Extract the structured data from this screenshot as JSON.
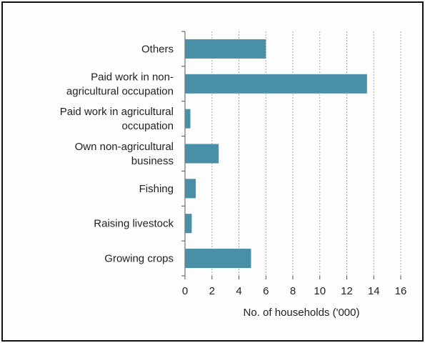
{
  "chart_data": {
    "type": "bar",
    "orientation": "horizontal",
    "categories": [
      [
        "Others"
      ],
      [
        "Paid work in non-",
        "agricultural occupation"
      ],
      [
        "Paid work in agricultural",
        "occupation"
      ],
      [
        "Own non-agricultural",
        "business"
      ],
      [
        "Fishing"
      ],
      [
        "Raising livestock"
      ],
      [
        "Growing crops"
      ]
    ],
    "values": [
      6.0,
      13.5,
      0.4,
      2.5,
      0.8,
      0.5,
      4.9
    ],
    "xlabel": "No. of households ('000)",
    "ylabel": "",
    "xlim": [
      0,
      16
    ],
    "xticks": [
      "0",
      "2",
      "4",
      "6",
      "8",
      "10",
      "12",
      "14",
      "16"
    ],
    "grid": "vertical dashed",
    "bar_color": "#4a8fa8",
    "grid_color": "#aaaaaa"
  }
}
